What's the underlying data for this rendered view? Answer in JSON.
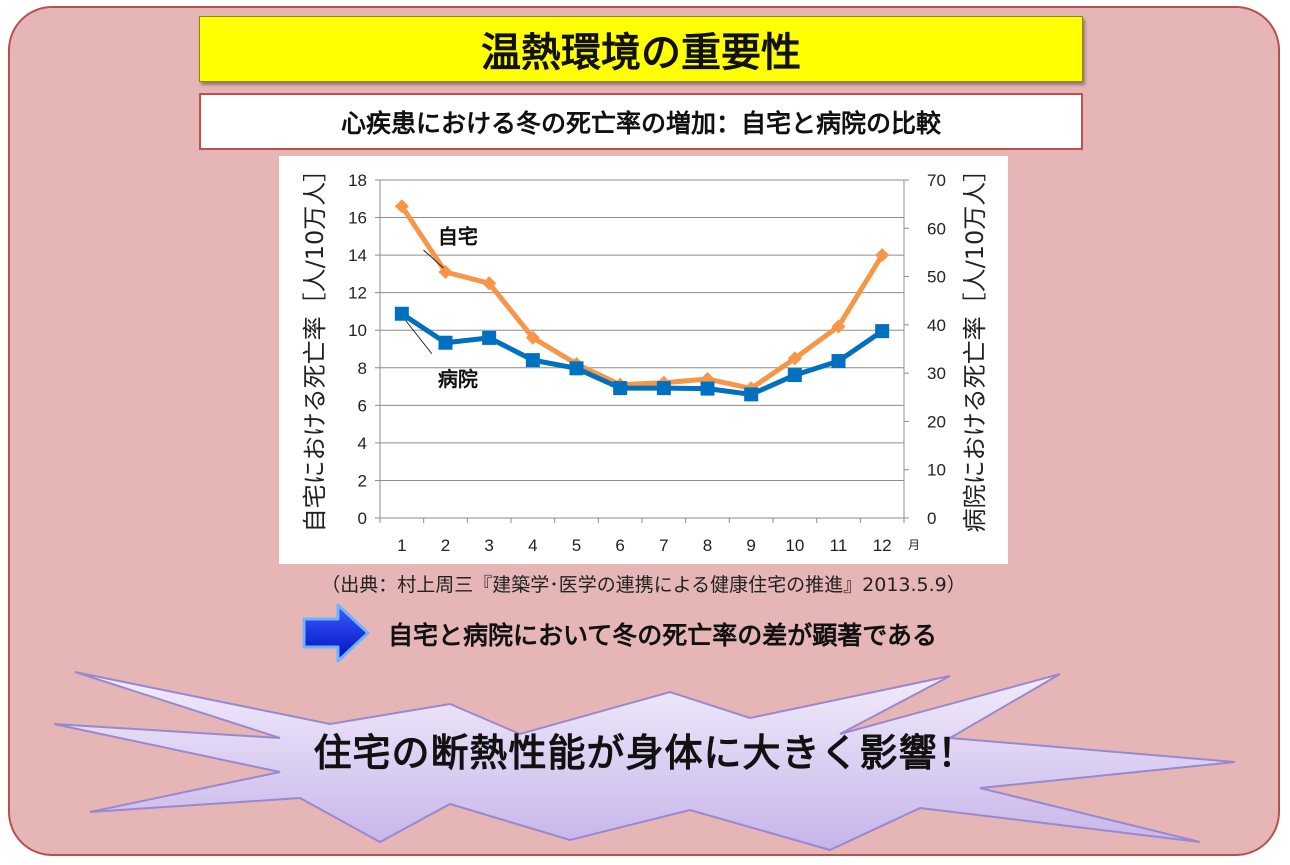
{
  "title": "温熱環境の重要性",
  "subtitle": "心疾患における冬の死亡率の増加：自宅と病院の比較",
  "source": "（出典：村上周三『建築学･医学の連携による健康住宅の推進』2013.5.9）",
  "conclusion": "自宅と病院において冬の死亡率の差が顕著である",
  "headline": "住宅の断熱性能が身体に大きく影響！",
  "icons": {
    "arrow": "right-arrow-icon",
    "burst": "explosion-burst-shape"
  },
  "colors": {
    "home": "#f79646",
    "hospital": "#0070c0",
    "title_bg": "#ffff00",
    "panel": "#e6b6b6",
    "panel_border": "#b9504c",
    "burst": "#d9ccf0"
  },
  "chart_data": {
    "type": "line",
    "x": [
      1,
      2,
      3,
      4,
      5,
      6,
      7,
      8,
      9,
      10,
      11,
      12
    ],
    "x_unit": "月",
    "ylabel_left": "自宅における死亡率［人/10万人］",
    "ylabel_right": "病院における死亡率［人/10万人］",
    "ylim_left": [
      0,
      18
    ],
    "ylim_right": [
      0,
      70
    ],
    "yticks_left": [
      0,
      2,
      4,
      6,
      8,
      10,
      12,
      14,
      16,
      18
    ],
    "yticks_right": [
      0,
      10,
      20,
      30,
      40,
      50,
      60,
      70
    ],
    "grid": true,
    "series": [
      {
        "name": "自宅",
        "axis": "left",
        "marker": "diamond",
        "values": [
          16.6,
          13.1,
          12.5,
          9.6,
          8.2,
          7.1,
          7.2,
          7.4,
          6.9,
          8.5,
          10.2,
          14.0
        ]
      },
      {
        "name": "病院",
        "axis": "right",
        "marker": "square",
        "values": [
          42.3,
          36.3,
          37.3,
          32.7,
          31.0,
          26.9,
          26.9,
          26.8,
          25.6,
          29.6,
          32.5,
          38.7
        ]
      }
    ]
  }
}
